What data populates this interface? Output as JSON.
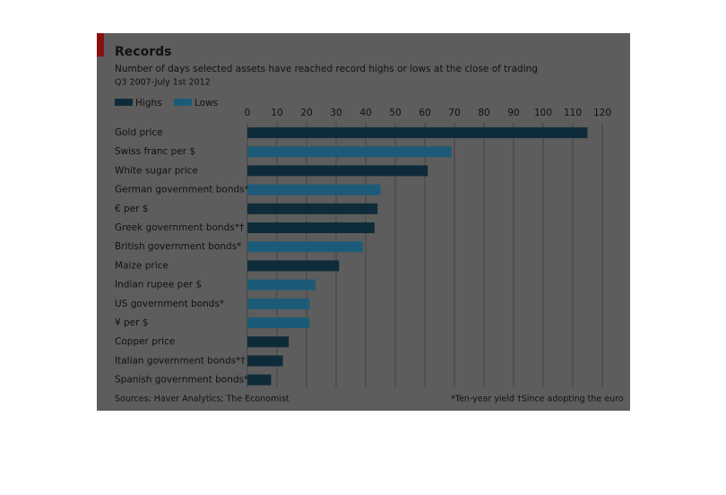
{
  "chart_data": {
    "type": "bar",
    "orientation": "horizontal",
    "title": "Records",
    "subtitle": "Number of days selected assets have reached record highs or lows at the close of trading",
    "period": "Q3 2007-July 1st 2012",
    "categories": [
      "Gold price",
      "Swiss franc per $",
      "White sugar price",
      "German government bonds*",
      "€ per $",
      "Greek government bonds*†",
      "British government bonds*",
      "Maize price",
      "Indian rupee per $",
      "US government bonds*",
      "¥ per $",
      "Copper price",
      "Italian government bonds*†",
      "Spanish government bonds*†"
    ],
    "series": [
      {
        "name": "Highs",
        "color": "#0e2b3a",
        "values": [
          115,
          null,
          61,
          null,
          44,
          43,
          null,
          31,
          null,
          null,
          null,
          14,
          12,
          8
        ]
      },
      {
        "name": "Lows",
        "color": "#1b5b78",
        "values": [
          null,
          69,
          null,
          45,
          null,
          null,
          39,
          null,
          23,
          21,
          21,
          null,
          null,
          null
        ]
      }
    ],
    "xlim": [
      0,
      120
    ],
    "xticks": [
      0,
      10,
      20,
      30,
      40,
      50,
      60,
      70,
      80,
      90,
      100,
      110,
      120
    ],
    "grid": true,
    "source": "Sources: Haver Analytics; The Economist",
    "notes": [
      "*Ten-year yield",
      "†Since adopting the euro"
    ]
  }
}
